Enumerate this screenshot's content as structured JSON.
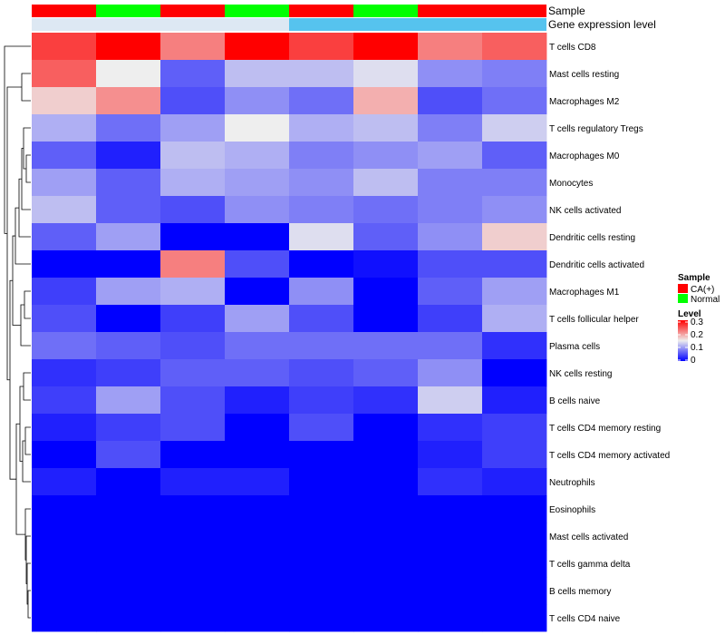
{
  "chart_data": {
    "type": "heatmap",
    "annotation_tracks": [
      "Sample",
      "Gene expression level"
    ],
    "columns": [
      {
        "sample": "CA(+)",
        "expression_level": "low"
      },
      {
        "sample": "Normal",
        "expression_level": "low"
      },
      {
        "sample": "CA(+)",
        "expression_level": "low"
      },
      {
        "sample": "Normal",
        "expression_level": "low"
      },
      {
        "sample": "CA(+)",
        "expression_level": "high"
      },
      {
        "sample": "Normal",
        "expression_level": "high"
      },
      {
        "sample": "CA(+)",
        "expression_level": "high"
      },
      {
        "sample": "CA(+)",
        "expression_level": "high"
      }
    ],
    "rows": [
      "T cells CD8",
      "Mast cells resting",
      "Macrophages M2",
      "T cells regulatory  Tregs",
      "Macrophages M0",
      "Monocytes",
      "NK cells activated",
      "Dendritic cells resting",
      "Dendritic cells activated",
      "Macrophages M1",
      "T cells follicular helper",
      "Plasma cells",
      "NK cells resting",
      "B cells naive",
      "T cells CD4 memory resting",
      "T cells CD4 memory activated",
      "Neutrophils",
      "Eosinophils",
      "Mast cells activated",
      "T cells gamma delta",
      "B cells memory",
      "T cells CD4 naive"
    ],
    "values": [
      [
        0.26,
        0.3,
        0.22,
        0.3,
        0.26,
        0.3,
        0.22,
        0.24
      ],
      [
        0.24,
        0.15,
        0.06,
        0.12,
        0.12,
        0.14,
        0.09,
        0.08
      ],
      [
        0.17,
        0.21,
        0.05,
        0.09,
        0.07,
        0.19,
        0.05,
        0.07
      ],
      [
        0.11,
        0.07,
        0.1,
        0.15,
        0.11,
        0.12,
        0.08,
        0.13
      ],
      [
        0.06,
        0.02,
        0.12,
        0.11,
        0.08,
        0.09,
        0.1,
        0.06
      ],
      [
        0.1,
        0.06,
        0.11,
        0.1,
        0.09,
        0.12,
        0.08,
        0.08
      ],
      [
        0.12,
        0.06,
        0.05,
        0.09,
        0.08,
        0.07,
        0.08,
        0.09
      ],
      [
        0.06,
        0.1,
        0.0,
        0.0,
        0.14,
        0.06,
        0.09,
        0.17
      ],
      [
        0.0,
        0.0,
        0.22,
        0.05,
        0.0,
        0.01,
        0.05,
        0.05
      ],
      [
        0.04,
        0.1,
        0.11,
        0.0,
        0.09,
        0.0,
        0.06,
        0.1
      ],
      [
        0.05,
        0.0,
        0.04,
        0.1,
        0.05,
        0.0,
        0.04,
        0.11
      ],
      [
        0.07,
        0.06,
        0.05,
        0.07,
        0.07,
        0.07,
        0.07,
        0.03
      ],
      [
        0.03,
        0.04,
        0.06,
        0.06,
        0.05,
        0.06,
        0.09,
        0.0
      ],
      [
        0.04,
        0.1,
        0.05,
        0.02,
        0.04,
        0.03,
        0.13,
        0.02
      ],
      [
        0.02,
        0.04,
        0.05,
        0.0,
        0.05,
        0.0,
        0.03,
        0.04
      ],
      [
        0.0,
        0.05,
        0.0,
        0.0,
        0.0,
        0.0,
        0.02,
        0.04
      ],
      [
        0.02,
        0.0,
        0.02,
        0.02,
        0.0,
        0.0,
        0.03,
        0.02
      ],
      [
        0.0,
        0.0,
        0.0,
        0.0,
        0.0,
        0.0,
        0.0,
        0.0
      ],
      [
        0.0,
        0.0,
        0.0,
        0.0,
        0.0,
        0.0,
        0.0,
        0.0
      ],
      [
        0.0,
        0.0,
        0.0,
        0.0,
        0.0,
        0.0,
        0.0,
        0.0
      ],
      [
        0.0,
        0.0,
        0.0,
        0.0,
        0.0,
        0.0,
        0.0,
        0.0
      ],
      [
        0.0,
        0.0,
        0.0,
        0.0,
        0.0,
        0.0,
        0.0,
        0.0
      ]
    ],
    "color_scale": {
      "min": 0,
      "max": 0.3,
      "low": "#0000ff",
      "mid": "#eeeeee",
      "high": "#ff0000",
      "midpoint": 0.15
    },
    "annotation_colors": {
      "sample": {
        "CA(+)": "#ff0000",
        "Normal": "#00ff00"
      },
      "expression_level": {
        "low": "#dde8f3",
        "high": "#56c3ee"
      }
    },
    "legend": {
      "sample_title": "Sample",
      "sample_entries": [
        "CA(+)",
        "Normal"
      ],
      "level_title": "Level",
      "level_ticks": [
        "0.3",
        "0.2",
        "0.1",
        "0"
      ]
    },
    "row_dendrogram": true,
    "legend_position": "right"
  }
}
